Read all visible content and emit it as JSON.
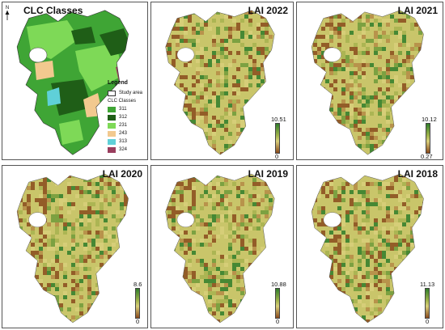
{
  "panels": [
    {
      "id": "clc",
      "title": "CLC Classes"
    },
    {
      "id": "lai2022",
      "title": "LAI 2022",
      "scale_max": "10.51",
      "scale_min": "0"
    },
    {
      "id": "lai2021",
      "title": "LAI 2021",
      "scale_max": "10.12",
      "scale_min": "0.27"
    },
    {
      "id": "lai2020",
      "title": "LAI 2020",
      "scale_max": "8.6",
      "scale_min": "0"
    },
    {
      "id": "lai2019",
      "title": "LAI 2019",
      "scale_max": "10.88",
      "scale_min": "0"
    },
    {
      "id": "lai2018",
      "title": "LAI 2018",
      "scale_max": "11.13",
      "scale_min": "0"
    }
  ],
  "north_label": "N",
  "legend": {
    "title": "Legend",
    "study_area": "Study area",
    "subtitle": "CLC Classes",
    "classes": [
      {
        "code": "311",
        "color": "#3fa535"
      },
      {
        "code": "312",
        "color": "#1f5e17"
      },
      {
        "code": "231",
        "color": "#7ed957"
      },
      {
        "code": "243",
        "color": "#f2c98f"
      },
      {
        "code": "313",
        "color": "#5fd0d8"
      },
      {
        "code": "324",
        "color": "#9a3e5e"
      }
    ]
  },
  "colors": {
    "lai_high": "#2f7d2a",
    "lai_mid": "#c9c56a",
    "lai_low": "#8a4a1c"
  }
}
